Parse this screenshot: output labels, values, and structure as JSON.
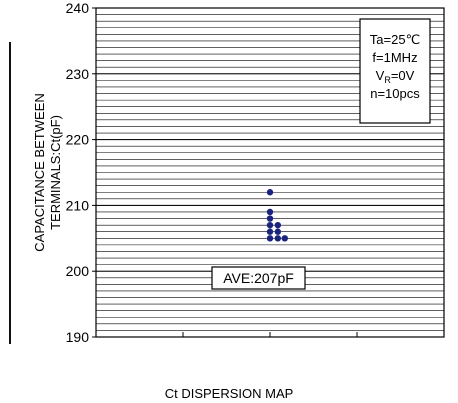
{
  "chart_data": {
    "type": "scatter",
    "title": "",
    "xlabel": "Ct DISPERSION MAP",
    "ylabel_lines": [
      "CAPACITANCE BETWEEN",
      "TERMINALS:Ct(pF)"
    ],
    "ylim": [
      190,
      240
    ],
    "yticks": [
      190,
      200,
      210,
      220,
      230,
      240
    ],
    "ytick_labels": [
      "190",
      "200",
      "210",
      "220",
      "230",
      "240"
    ],
    "minor_grid_step": 1,
    "grid": true,
    "x_sections": 4,
    "points": [
      {
        "x": 2.0,
        "y": 212
      },
      {
        "x": 2.0,
        "y": 209
      },
      {
        "x": 2.0,
        "y": 208
      },
      {
        "x": 2.0,
        "y": 207
      },
      {
        "x": 2.0,
        "y": 206
      },
      {
        "x": 2.0,
        "y": 205
      },
      {
        "x": 2.09,
        "y": 207
      },
      {
        "x": 2.09,
        "y": 206
      },
      {
        "x": 2.09,
        "y": 205
      },
      {
        "x": 2.17,
        "y": 205
      }
    ],
    "x_range": [
      0,
      4
    ],
    "marker_color": "#1a237e",
    "conditions_lines": [
      {
        "main": "Ta=25℃",
        "sub": "",
        "rest": ""
      },
      {
        "main": "f=1MHz",
        "sub": "",
        "rest": ""
      },
      {
        "main": "V",
        "sub": "R",
        "rest": "=0V"
      },
      {
        "main": "n=10pcs",
        "sub": "",
        "rest": ""
      }
    ],
    "average_label": "AVE:207pF"
  }
}
